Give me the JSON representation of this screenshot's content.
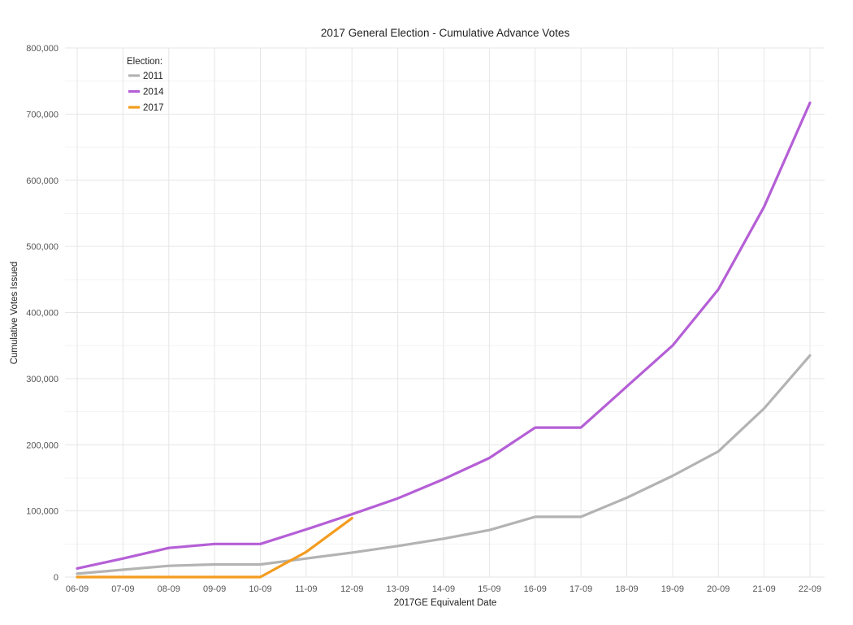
{
  "chart_data": {
    "type": "line",
    "title": "2017 General Election - Cumulative Advance Votes",
    "xlabel": "2017GE Equivalent Date",
    "ylabel": "Cumulative Votes Issued",
    "categories": [
      "06-09",
      "07-09",
      "08-09",
      "09-09",
      "10-09",
      "11-09",
      "12-09",
      "13-09",
      "14-09",
      "15-09",
      "16-09",
      "17-09",
      "18-09",
      "19-09",
      "20-09",
      "21-09",
      "22-09"
    ],
    "ylim": [
      0,
      800000
    ],
    "yticks": [
      0,
      100000,
      200000,
      300000,
      400000,
      500000,
      600000,
      700000,
      800000
    ],
    "ytick_labels": [
      "0",
      "100,000",
      "200,000",
      "300,000",
      "400,000",
      "500,000",
      "600,000",
      "700,000",
      "800,000"
    ],
    "grid": true,
    "legend": {
      "title": "Election:",
      "placement": "top-left"
    },
    "series": [
      {
        "name": "2011",
        "color": "#b3b3b3",
        "values": [
          5000,
          11000,
          17000,
          19000,
          19000,
          28000,
          37000,
          47000,
          58000,
          71000,
          91000,
          91000,
          120000,
          153000,
          190000,
          255000,
          335000
        ]
      },
      {
        "name": "2014",
        "color": "#b55fd6",
        "values": [
          13000,
          28000,
          44000,
          50000,
          50000,
          72000,
          95000,
          119000,
          148000,
          180000,
          226000,
          226000,
          288000,
          350000,
          435000,
          560000,
          717000
        ]
      },
      {
        "name": "2017",
        "color": "#f39c1f",
        "values": [
          0,
          0,
          0,
          0,
          0,
          38000,
          89000,
          null,
          null,
          null,
          null,
          null,
          null,
          null,
          null,
          null,
          null
        ]
      }
    ]
  }
}
